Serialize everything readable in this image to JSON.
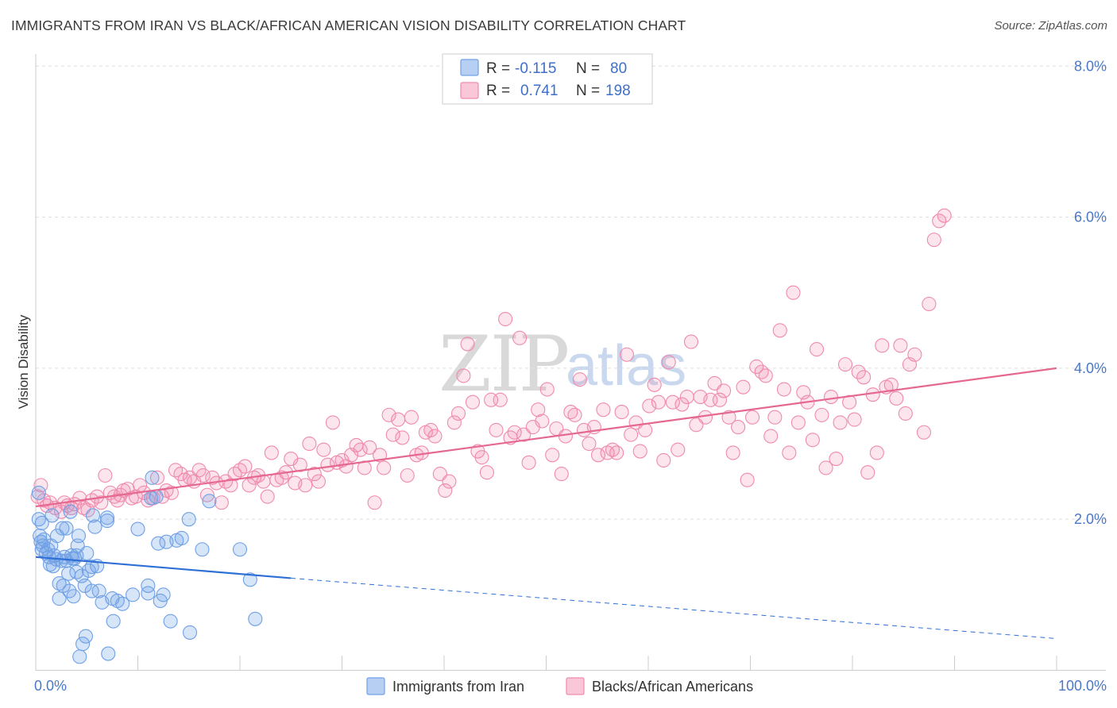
{
  "header": {
    "title": "IMMIGRANTS FROM IRAN VS BLACK/AFRICAN AMERICAN VISION DISABILITY CORRELATION CHART",
    "source": "Source: ZipAtlas.com"
  },
  "watermark": {
    "part1": "ZIP",
    "part2": "atlas"
  },
  "legend": {
    "rows": [
      {
        "r_label": "R =",
        "r_value": "-0.115",
        "n_label": "N =",
        "n_value": "80",
        "color": "#6fa0e6"
      },
      {
        "r_label": "R =",
        "r_value": "0.741",
        "n_label": "N =",
        "n_value": "198",
        "color": "#f08aad"
      }
    ]
  },
  "bottom_legend": {
    "items": [
      {
        "label": "Immigrants from Iran",
        "color": "#6fa0e6"
      },
      {
        "label": "Blacks/African Americans",
        "color": "#f08aad"
      }
    ]
  },
  "chart_data": {
    "type": "scatter",
    "ylabel": "Vision Disability",
    "xlim": [
      0,
      100
    ],
    "ylim": [
      0,
      8.0
    ],
    "x_tick_labels": [
      "0.0%",
      "100.0%"
    ],
    "y_ticks": [
      2.0,
      4.0,
      6.0,
      8.0
    ],
    "y_tick_labels": [
      "2.0%",
      "4.0%",
      "6.0%",
      "8.0%"
    ],
    "grid": "horizontal dashed",
    "series": [
      {
        "name": "Immigrants from Iran",
        "color": "#6fa0e6",
        "trend": {
          "x0": 0,
          "y0": 1.5,
          "x1": 25,
          "y1": 1.22,
          "dashed_to_x": 100,
          "dashed_to_y": 0.42
        },
        "points": [
          [
            0.3,
            2.35
          ],
          [
            0.3,
            2.0
          ],
          [
            0.4,
            1.78
          ],
          [
            0.5,
            1.7
          ],
          [
            0.6,
            1.95
          ],
          [
            0.6,
            1.6
          ],
          [
            0.7,
            1.65
          ],
          [
            0.8,
            1.73
          ],
          [
            1.0,
            1.55
          ],
          [
            1.2,
            1.6
          ],
          [
            1.3,
            1.5
          ],
          [
            1.4,
            1.4
          ],
          [
            1.5,
            1.65
          ],
          [
            1.6,
            2.05
          ],
          [
            1.7,
            1.38
          ],
          [
            1.8,
            1.52
          ],
          [
            2.0,
            1.47
          ],
          [
            2.1,
            1.78
          ],
          [
            2.3,
            1.15
          ],
          [
            2.3,
            0.95
          ],
          [
            2.5,
            1.45
          ],
          [
            2.6,
            1.88
          ],
          [
            2.7,
            1.12
          ],
          [
            2.8,
            1.5
          ],
          [
            3.0,
            1.45
          ],
          [
            3.0,
            1.88
          ],
          [
            3.2,
            1.28
          ],
          [
            3.3,
            1.05
          ],
          [
            3.4,
            2.1
          ],
          [
            3.5,
            1.52
          ],
          [
            3.6,
            1.48
          ],
          [
            3.7,
            0.98
          ],
          [
            3.8,
            1.48
          ],
          [
            4.0,
            1.52
          ],
          [
            4.0,
            1.3
          ],
          [
            4.1,
            1.65
          ],
          [
            4.2,
            1.78
          ],
          [
            4.3,
            0.18
          ],
          [
            4.5,
            1.25
          ],
          [
            4.6,
            0.35
          ],
          [
            4.8,
            1.12
          ],
          [
            4.9,
            0.45
          ],
          [
            5.0,
            1.55
          ],
          [
            5.2,
            1.32
          ],
          [
            5.5,
            1.05
          ],
          [
            5.5,
            1.37
          ],
          [
            5.6,
            2.05
          ],
          [
            5.8,
            1.9
          ],
          [
            6.0,
            1.38
          ],
          [
            6.2,
            1.05
          ],
          [
            6.5,
            0.9
          ],
          [
            7.0,
            2.02
          ],
          [
            7.0,
            1.98
          ],
          [
            7.1,
            0.22
          ],
          [
            7.5,
            0.95
          ],
          [
            7.6,
            0.65
          ],
          [
            8.0,
            0.92
          ],
          [
            8.5,
            0.88
          ],
          [
            9.5,
            1.0
          ],
          [
            10.0,
            1.87
          ],
          [
            11.0,
            1.12
          ],
          [
            11.0,
            1.02
          ],
          [
            11.3,
            2.28
          ],
          [
            11.4,
            2.55
          ],
          [
            11.8,
            2.3
          ],
          [
            12.0,
            1.68
          ],
          [
            12.2,
            0.92
          ],
          [
            12.5,
            1.0
          ],
          [
            12.8,
            1.7
          ],
          [
            13.2,
            0.65
          ],
          [
            13.8,
            1.72
          ],
          [
            14.3,
            1.75
          ],
          [
            15.0,
            2.0
          ],
          [
            15.1,
            0.5
          ],
          [
            16.3,
            1.6
          ],
          [
            17.0,
            2.24
          ],
          [
            20.0,
            1.6
          ],
          [
            21.0,
            1.2
          ],
          [
            21.5,
            0.68
          ]
        ]
      },
      {
        "name": "Blacks/African Americans",
        "color": "#f08aad",
        "trend": {
          "x0": 0,
          "y0": 2.17,
          "x1": 100,
          "y1": 4.0
        },
        "points": [
          [
            0.2,
            2.3
          ],
          [
            0.5,
            2.45
          ],
          [
            0.8,
            2.25
          ],
          [
            1.1,
            2.18
          ],
          [
            1.4,
            2.22
          ],
          [
            1.9,
            2.15
          ],
          [
            2.5,
            2.1
          ],
          [
            2.8,
            2.22
          ],
          [
            3.1,
            2.18
          ],
          [
            3.5,
            2.15
          ],
          [
            3.8,
            2.2
          ],
          [
            4.3,
            2.28
          ],
          [
            4.7,
            2.15
          ],
          [
            5.1,
            2.12
          ],
          [
            5.5,
            2.25
          ],
          [
            6.0,
            2.3
          ],
          [
            6.4,
            2.22
          ],
          [
            6.8,
            2.58
          ],
          [
            7.3,
            2.35
          ],
          [
            7.7,
            2.3
          ],
          [
            8.0,
            2.25
          ],
          [
            8.3,
            2.32
          ],
          [
            8.6,
            2.38
          ],
          [
            9.0,
            2.4
          ],
          [
            9.4,
            2.28
          ],
          [
            9.8,
            2.3
          ],
          [
            10.2,
            2.45
          ],
          [
            10.6,
            2.35
          ],
          [
            11.0,
            2.25
          ],
          [
            11.5,
            2.28
          ],
          [
            11.9,
            2.55
          ],
          [
            12.4,
            2.3
          ],
          [
            12.8,
            2.38
          ],
          [
            13.3,
            2.35
          ],
          [
            13.7,
            2.65
          ],
          [
            14.2,
            2.6
          ],
          [
            14.6,
            2.52
          ],
          [
            15.1,
            2.55
          ],
          [
            15.5,
            2.5
          ],
          [
            16.0,
            2.65
          ],
          [
            16.4,
            2.58
          ],
          [
            16.8,
            2.32
          ],
          [
            17.3,
            2.55
          ],
          [
            17.7,
            2.48
          ],
          [
            18.2,
            2.22
          ],
          [
            18.6,
            2.5
          ],
          [
            19.1,
            2.45
          ],
          [
            19.5,
            2.6
          ],
          [
            20.0,
            2.65
          ],
          [
            20.5,
            2.7
          ],
          [
            20.9,
            2.45
          ],
          [
            21.4,
            2.55
          ],
          [
            21.8,
            2.58
          ],
          [
            22.3,
            2.5
          ],
          [
            22.7,
            2.3
          ],
          [
            23.1,
            2.88
          ],
          [
            23.6,
            2.52
          ],
          [
            24.1,
            2.55
          ],
          [
            24.5,
            2.62
          ],
          [
            25.0,
            2.8
          ],
          [
            25.4,
            2.48
          ],
          [
            25.9,
            2.72
          ],
          [
            26.4,
            2.45
          ],
          [
            26.8,
            3.0
          ],
          [
            27.3,
            2.6
          ],
          [
            27.7,
            2.5
          ],
          [
            28.2,
            2.92
          ],
          [
            28.6,
            2.72
          ],
          [
            29.1,
            3.28
          ],
          [
            29.5,
            2.75
          ],
          [
            30.0,
            2.78
          ],
          [
            30.4,
            2.7
          ],
          [
            30.9,
            2.85
          ],
          [
            31.4,
            2.98
          ],
          [
            31.8,
            2.92
          ],
          [
            32.2,
            2.68
          ],
          [
            32.7,
            2.95
          ],
          [
            33.2,
            2.22
          ],
          [
            33.7,
            2.85
          ],
          [
            34.1,
            2.68
          ],
          [
            34.6,
            3.38
          ],
          [
            35.0,
            3.12
          ],
          [
            35.5,
            3.32
          ],
          [
            35.9,
            3.08
          ],
          [
            36.4,
            2.58
          ],
          [
            36.8,
            3.35
          ],
          [
            37.3,
            2.85
          ],
          [
            37.8,
            2.88
          ],
          [
            38.2,
            3.15
          ],
          [
            38.7,
            3.18
          ],
          [
            39.1,
            3.1
          ],
          [
            39.6,
            2.6
          ],
          [
            40.1,
            2.38
          ],
          [
            40.5,
            2.5
          ],
          [
            41.0,
            3.28
          ],
          [
            41.4,
            3.4
          ],
          [
            41.9,
            3.9
          ],
          [
            42.3,
            4.32
          ],
          [
            42.8,
            3.55
          ],
          [
            43.3,
            2.9
          ],
          [
            43.7,
            2.82
          ],
          [
            44.2,
            2.62
          ],
          [
            44.6,
            3.58
          ],
          [
            45.1,
            3.18
          ],
          [
            45.5,
            3.58
          ],
          [
            46.0,
            4.65
          ],
          [
            46.5,
            3.08
          ],
          [
            46.9,
            3.15
          ],
          [
            47.4,
            4.4
          ],
          [
            47.8,
            3.12
          ],
          [
            48.3,
            2.75
          ],
          [
            48.7,
            3.22
          ],
          [
            49.2,
            3.45
          ],
          [
            49.6,
            3.3
          ],
          [
            50.1,
            3.72
          ],
          [
            50.6,
            2.85
          ],
          [
            51.0,
            3.2
          ],
          [
            51.5,
            2.6
          ],
          [
            51.9,
            3.1
          ],
          [
            52.4,
            3.42
          ],
          [
            52.8,
            3.38
          ],
          [
            53.3,
            3.85
          ],
          [
            53.7,
            3.18
          ],
          [
            54.2,
            3.0
          ],
          [
            54.7,
            3.22
          ],
          [
            55.1,
            2.85
          ],
          [
            55.6,
            3.45
          ],
          [
            56.0,
            2.88
          ],
          [
            56.5,
            2.92
          ],
          [
            56.9,
            2.88
          ],
          [
            57.4,
            3.42
          ],
          [
            57.9,
            4.18
          ],
          [
            58.3,
            3.12
          ],
          [
            58.8,
            3.28
          ],
          [
            59.2,
            2.9
          ],
          [
            59.7,
            3.18
          ],
          [
            60.1,
            3.5
          ],
          [
            60.6,
            3.78
          ],
          [
            61.0,
            3.55
          ],
          [
            61.5,
            2.78
          ],
          [
            62.0,
            4.08
          ],
          [
            62.4,
            3.55
          ],
          [
            62.9,
            2.92
          ],
          [
            63.3,
            3.52
          ],
          [
            63.8,
            3.62
          ],
          [
            64.2,
            4.35
          ],
          [
            64.7,
            3.25
          ],
          [
            65.1,
            3.62
          ],
          [
            65.6,
            3.35
          ],
          [
            66.1,
            3.58
          ],
          [
            66.5,
            3.8
          ],
          [
            67.0,
            3.58
          ],
          [
            67.4,
            3.7
          ],
          [
            67.9,
            3.35
          ],
          [
            68.3,
            2.88
          ],
          [
            68.8,
            3.22
          ],
          [
            69.3,
            3.75
          ],
          [
            69.7,
            2.52
          ],
          [
            70.2,
            3.35
          ],
          [
            70.6,
            4.02
          ],
          [
            71.1,
            3.95
          ],
          [
            71.5,
            3.9
          ],
          [
            72.0,
            3.1
          ],
          [
            72.4,
            3.35
          ],
          [
            72.9,
            4.5
          ],
          [
            73.3,
            3.72
          ],
          [
            73.8,
            2.88
          ],
          [
            74.2,
            5.0
          ],
          [
            74.7,
            3.28
          ],
          [
            75.2,
            3.68
          ],
          [
            75.6,
            3.55
          ],
          [
            76.1,
            3.05
          ],
          [
            76.5,
            4.25
          ],
          [
            77.0,
            3.38
          ],
          [
            77.4,
            2.68
          ],
          [
            77.9,
            3.62
          ],
          [
            78.4,
            2.8
          ],
          [
            78.8,
            3.28
          ],
          [
            79.3,
            4.05
          ],
          [
            79.7,
            3.55
          ],
          [
            80.2,
            3.32
          ],
          [
            80.6,
            3.95
          ],
          [
            81.1,
            3.88
          ],
          [
            81.5,
            2.62
          ],
          [
            82.0,
            3.65
          ],
          [
            82.4,
            2.88
          ],
          [
            82.9,
            4.3
          ],
          [
            83.3,
            3.75
          ],
          [
            83.8,
            3.78
          ],
          [
            84.3,
            3.6
          ],
          [
            84.7,
            4.3
          ],
          [
            85.2,
            3.4
          ],
          [
            85.6,
            4.05
          ],
          [
            86.1,
            4.18
          ],
          [
            87.0,
            3.15
          ],
          [
            87.5,
            4.85
          ],
          [
            88.0,
            5.7
          ],
          [
            88.5,
            5.95
          ],
          [
            89.0,
            6.02
          ]
        ]
      }
    ]
  }
}
